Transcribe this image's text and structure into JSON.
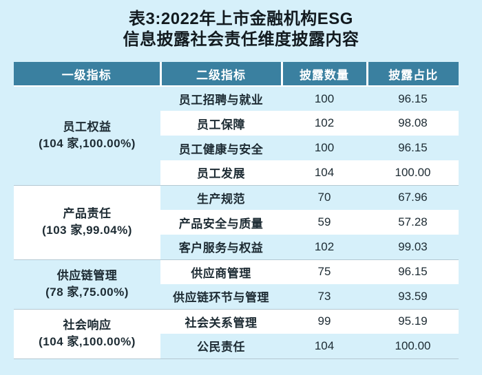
{
  "title": {
    "line1": "表3:2022年上市金融机构ESG",
    "line2": "信息披露社会责任维度披露内容"
  },
  "table": {
    "headers": [
      "一级指标",
      "二级指标",
      "披露数量",
      "披露占比"
    ],
    "groups": [
      {
        "primary": "员工权益",
        "meta": "(104 家,100.00%)",
        "rows": [
          {
            "secondary": "员工招聘与就业",
            "count": "100",
            "pct": "96.15"
          },
          {
            "secondary": "员工保障",
            "count": "102",
            "pct": "98.08"
          },
          {
            "secondary": "员工健康与安全",
            "count": "100",
            "pct": "96.15"
          },
          {
            "secondary": "员工发展",
            "count": "104",
            "pct": "100.00"
          }
        ]
      },
      {
        "primary": "产品责任",
        "meta": "(103 家,99.04%)",
        "rows": [
          {
            "secondary": "生产规范",
            "count": "70",
            "pct": "67.96"
          },
          {
            "secondary": "产品安全与质量",
            "count": "59",
            "pct": "57.28"
          },
          {
            "secondary": "客户服务与权益",
            "count": "102",
            "pct": "99.03"
          }
        ]
      },
      {
        "primary": "供应链管理",
        "meta": "(78 家,75.00%)",
        "rows": [
          {
            "secondary": "供应商管理",
            "count": "75",
            "pct": "96.15"
          },
          {
            "secondary": "供应链环节与管理",
            "count": "73",
            "pct": "93.59"
          }
        ]
      },
      {
        "primary": "社会响应",
        "meta": "(104 家,100.00%)",
        "rows": [
          {
            "secondary": "社会关系管理",
            "count": "99",
            "pct": "95.19"
          },
          {
            "secondary": "公民责任",
            "count": "104",
            "pct": "100.00"
          }
        ]
      }
    ]
  },
  "colors": {
    "page_bg": "#d6f0fa",
    "header_bg": "#3a80a0",
    "header_text": "#ffffff",
    "row_alt_bg": "#d6f0fa",
    "row_bg": "#ffffff",
    "divider": "#b4c8d2",
    "text": "#1d2b33"
  }
}
